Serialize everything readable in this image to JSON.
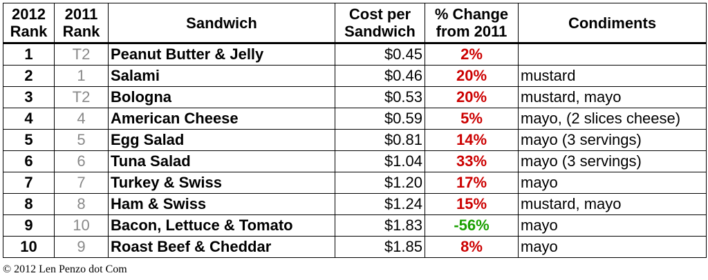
{
  "headers": {
    "rank2012": "2012 Rank",
    "rank2011": "2011 Rank",
    "sandwich": "Sandwich",
    "cost": "Cost per Sandwich",
    "change": "% Change from 2011",
    "condiments": "Condiments"
  },
  "rows": [
    {
      "rank2012": "1",
      "rank2011": "T2",
      "sandwich": "Peanut Butter & Jelly",
      "cost": "$0.45",
      "change": "2%",
      "condiments": ""
    },
    {
      "rank2012": "2",
      "rank2011": "1",
      "sandwich": "Salami",
      "cost": "$0.46",
      "change": "20%",
      "condiments": "mustard"
    },
    {
      "rank2012": "3",
      "rank2011": "T2",
      "sandwich": "Bologna",
      "cost": "$0.53",
      "change": "20%",
      "condiments": "mustard, mayo"
    },
    {
      "rank2012": "4",
      "rank2011": "4",
      "sandwich": "American Cheese",
      "cost": "$0.59",
      "change": "5%",
      "condiments": "mayo, (2 slices cheese)"
    },
    {
      "rank2012": "5",
      "rank2011": "5",
      "sandwich": "Egg Salad",
      "cost": "$0.81",
      "change": "14%",
      "condiments": "mayo (3 servings)"
    },
    {
      "rank2012": "6",
      "rank2011": "6",
      "sandwich": "Tuna Salad",
      "cost": "$1.04",
      "change": "33%",
      "condiments": "mayo (3 servings)"
    },
    {
      "rank2012": "7",
      "rank2011": "7",
      "sandwich": "Turkey & Swiss",
      "cost": "$1.20",
      "change": "17%",
      "condiments": "mayo"
    },
    {
      "rank2012": "8",
      "rank2011": "8",
      "sandwich": "Ham & Swiss",
      "cost": "$1.24",
      "change": "15%",
      "condiments": "mustard, mayo"
    },
    {
      "rank2012": "9",
      "rank2011": "10",
      "sandwich": "Bacon, Lettuce & Tomato",
      "cost": "$1.83",
      "change": "-56%",
      "condiments": "mayo"
    },
    {
      "rank2012": "10",
      "rank2011": "9",
      "sandwich": "Roast Beef & Cheddar",
      "cost": "$1.85",
      "change": "8%",
      "condiments": "mayo"
    }
  ],
  "colors": {
    "increase": "#cc0000",
    "decrease": "#1aa000",
    "rank2011_text": "#888888"
  },
  "footer": "© 2012 Len Penzo dot Com"
}
